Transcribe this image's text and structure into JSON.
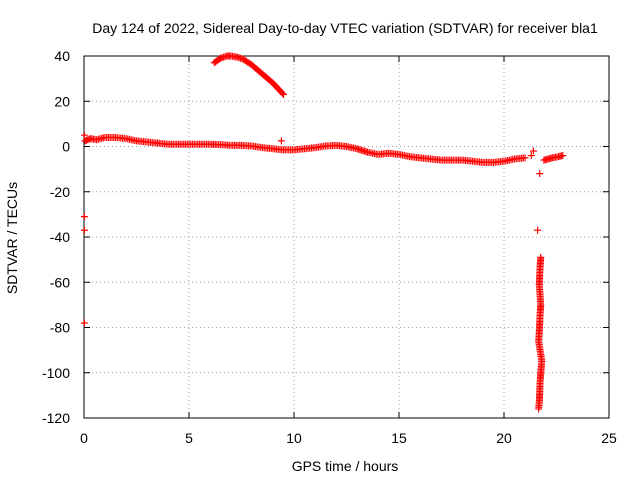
{
  "chart_data": {
    "type": "scatter",
    "title": "Day 124 of 2022, Sidereal Day-to-day VTEC variation (SDTVAR) for receiver bla1",
    "xlabel": "GPS time / hours",
    "ylabel": "SDTVAR / TECUs",
    "xlim": [
      0,
      25
    ],
    "ylim": [
      -120,
      40
    ],
    "xticks": [
      0,
      5,
      10,
      15,
      20,
      25
    ],
    "yticks": [
      -120,
      -100,
      -80,
      -60,
      -40,
      -20,
      0,
      20,
      40
    ],
    "grid": true,
    "marker": "+",
    "color": "#ff0000",
    "series": [
      {
        "name": "main trace",
        "points": [
          [
            0.05,
            2.5
          ],
          [
            0.3,
            3.5
          ],
          [
            0.6,
            3
          ],
          [
            1.0,
            4
          ],
          [
            1.5,
            4
          ],
          [
            2.0,
            3.5
          ],
          [
            2.5,
            2.5
          ],
          [
            3.0,
            2
          ],
          [
            3.5,
            1.5
          ],
          [
            4.0,
            1
          ],
          [
            4.5,
            1
          ],
          [
            5.0,
            1
          ],
          [
            5.5,
            1
          ],
          [
            6.0,
            1
          ],
          [
            6.5,
            0.8
          ],
          [
            7.0,
            0.5
          ],
          [
            7.5,
            0.5
          ],
          [
            8.0,
            0.2
          ],
          [
            8.5,
            -0.5
          ],
          [
            9.0,
            -1
          ],
          [
            9.5,
            -1.5
          ],
          [
            10.0,
            -1.5
          ],
          [
            10.5,
            -1
          ],
          [
            11.0,
            -0.5
          ],
          [
            11.5,
            0.2
          ],
          [
            12.0,
            0.5
          ],
          [
            12.5,
            0
          ],
          [
            13.0,
            -1
          ],
          [
            13.5,
            -2.5
          ],
          [
            14.0,
            -3.5
          ],
          [
            14.5,
            -3
          ],
          [
            15.0,
            -3.5
          ],
          [
            15.5,
            -4.5
          ],
          [
            16.0,
            -5
          ],
          [
            16.5,
            -5.5
          ],
          [
            17.0,
            -6
          ],
          [
            17.5,
            -6
          ],
          [
            18.0,
            -6
          ],
          [
            18.5,
            -6.5
          ],
          [
            19.0,
            -7
          ],
          [
            19.5,
            -7
          ],
          [
            20.0,
            -6.5
          ],
          [
            20.5,
            -5.5
          ],
          [
            21.0,
            -5
          ]
        ]
      },
      {
        "name": "high arc",
        "points": [
          [
            6.2,
            37
          ],
          [
            6.5,
            39
          ],
          [
            6.8,
            40
          ],
          [
            7.0,
            40
          ],
          [
            7.3,
            39.5
          ],
          [
            7.6,
            38.5
          ],
          [
            8.0,
            36
          ],
          [
            8.5,
            32
          ],
          [
            9.0,
            28
          ],
          [
            9.5,
            23
          ]
        ]
      },
      {
        "name": "end segment",
        "points": [
          [
            21.9,
            -6
          ],
          [
            22.1,
            -5.5
          ],
          [
            22.3,
            -5
          ],
          [
            22.6,
            -4.5
          ],
          [
            22.8,
            -4
          ]
        ]
      },
      {
        "name": "outliers",
        "points": [
          [
            0.02,
            5
          ],
          [
            0.02,
            -31
          ],
          [
            0.02,
            -37
          ],
          [
            0.02,
            -78
          ],
          [
            9.4,
            2.5
          ],
          [
            21.3,
            -4
          ],
          [
            21.4,
            -2
          ],
          [
            21.7,
            -12
          ],
          [
            21.6,
            -37
          ]
        ]
      },
      {
        "name": "descent",
        "points": [
          [
            21.75,
            -49
          ],
          [
            21.72,
            -53
          ],
          [
            21.7,
            -57
          ],
          [
            21.68,
            -61
          ],
          [
            21.75,
            -70
          ],
          [
            21.72,
            -74
          ],
          [
            21.7,
            -78
          ],
          [
            21.68,
            -82
          ],
          [
            21.65,
            -86
          ],
          [
            21.8,
            -95
          ],
          [
            21.75,
            -100
          ],
          [
            21.72,
            -104
          ],
          [
            21.7,
            -109
          ],
          [
            21.68,
            -113
          ],
          [
            21.65,
            -116
          ]
        ]
      }
    ]
  }
}
